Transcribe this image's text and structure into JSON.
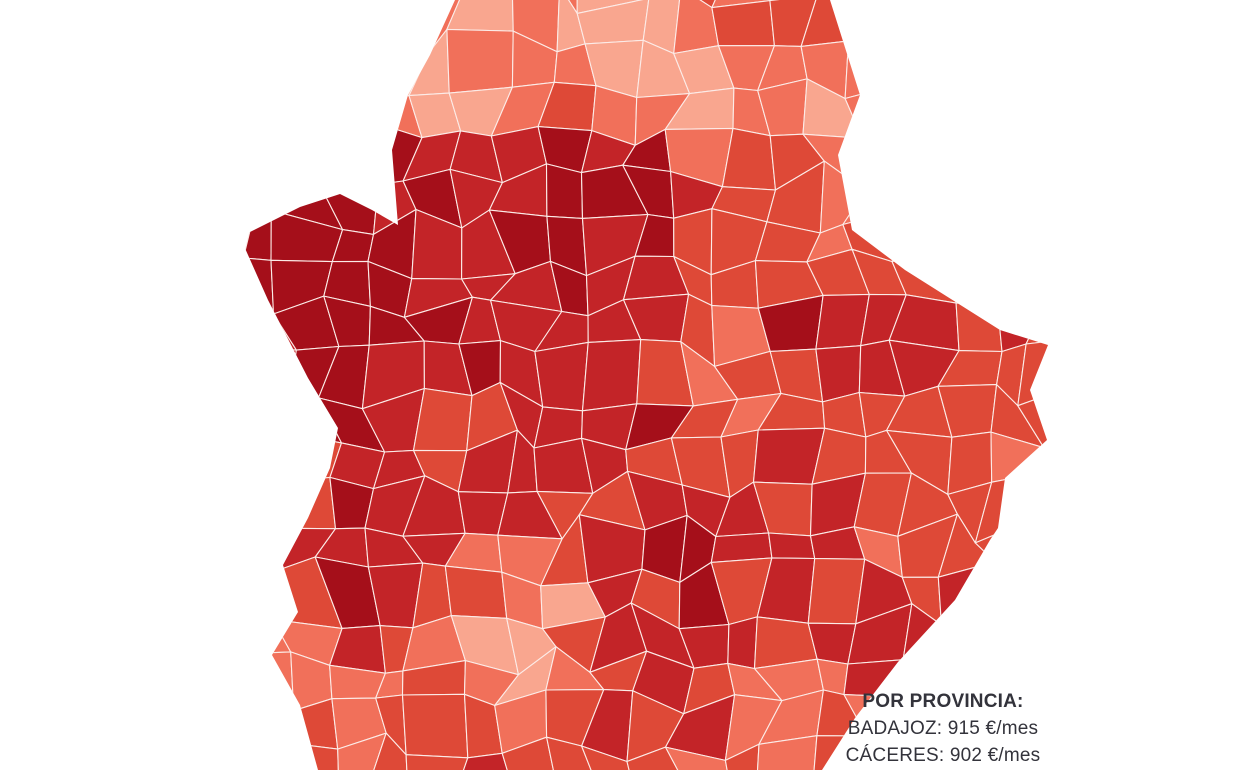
{
  "map": {
    "kind": "choropleth-municipalities",
    "palette": [
      "#f9a68f",
      "#f1705a",
      "#de4937",
      "#c32428",
      "#a50f1a"
    ],
    "border_color": "#fcebe7",
    "background": "#ffffff"
  },
  "overlay": {
    "title": "POR PROVINCIA:",
    "lines": [
      {
        "label": "BADAJOZ",
        "value": "915 €/mes",
        "text": "BADAJOZ: 915 €/mes"
      },
      {
        "label": "CÁCERES",
        "value": "902 €/mes",
        "text": "CÁCERES: 902 €/mes"
      }
    ],
    "text_color": "#33333b"
  },
  "chart_data": {
    "type": "choropleth-map",
    "title": "POR PROVINCIA:",
    "unit": "€/mes",
    "provinces": [
      {
        "name": "BADAJOZ",
        "value": 915
      },
      {
        "name": "CÁCERES",
        "value": 902
      }
    ],
    "legend": "none",
    "color_scale": [
      "#f9a68f",
      "#f1705a",
      "#de4937",
      "#c32428",
      "#a50f1a"
    ]
  }
}
